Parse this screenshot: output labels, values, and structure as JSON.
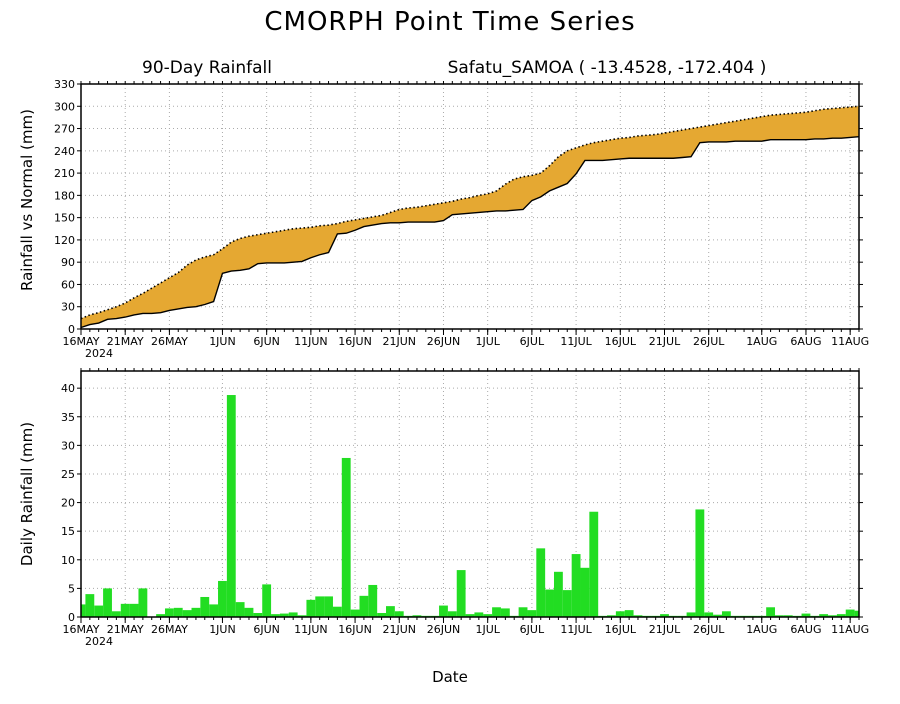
{
  "title": "CMORPH Point Time Series",
  "subtitle_left": "90-Day Rainfall",
  "subtitle_right": "Safatu_SAMOA ( -13.4528, -172.404 )",
  "xlabel": "Date",
  "year_label": "2024",
  "colors": {
    "accum_fill": "#E5A832",
    "daily_bars": "#22DD22",
    "grid": "#AAAAAA",
    "axis": "#000000"
  },
  "x_ticks": [
    "16MAY",
    "21MAY",
    "26MAY",
    "1JUN",
    "6JUN",
    "11JUN",
    "16JUN",
    "21JUN",
    "26JUN",
    "1JUL",
    "6JUL",
    "11JUL",
    "16JUL",
    "21JUL",
    "26JUL",
    "1AUG",
    "6AUG",
    "11AUG"
  ],
  "x_tick_days": [
    0,
    5,
    10,
    16,
    21,
    26,
    31,
    36,
    41,
    46,
    51,
    56,
    61,
    66,
    71,
    77,
    82,
    87
  ],
  "chart_data": [
    {
      "type": "area",
      "ylabel": "Rainfall vs Normal (mm)",
      "ylim": [
        0,
        330
      ],
      "yticks": [
        "0",
        "30",
        "60",
        "90",
        "120",
        "150",
        "180",
        "210",
        "240",
        "270",
        "300",
        "330"
      ],
      "ytick_values": [
        0,
        30,
        60,
        90,
        120,
        150,
        180,
        210,
        240,
        270,
        300,
        330
      ],
      "x_days": [
        0,
        1,
        2,
        3,
        4,
        5,
        6,
        7,
        8,
        9,
        10,
        11,
        12,
        13,
        14,
        15,
        16,
        17,
        18,
        19,
        20,
        21,
        22,
        23,
        24,
        25,
        26,
        27,
        28,
        29,
        30,
        31,
        32,
        33,
        34,
        35,
        36,
        37,
        38,
        39,
        40,
        41,
        42,
        43,
        44,
        45,
        46,
        47,
        48,
        49,
        50,
        51,
        52,
        53,
        54,
        55,
        56,
        57,
        58,
        59,
        60,
        61,
        62,
        63,
        64,
        65,
        66,
        67,
        68,
        69,
        70,
        71,
        72,
        73,
        74,
        75,
        76,
        77,
        78,
        79,
        80,
        81,
        82,
        83,
        84,
        85,
        86,
        87,
        88
      ],
      "normal": [
        14,
        19,
        22,
        26,
        30,
        35,
        42,
        48,
        55,
        62,
        69,
        76,
        86,
        93,
        97,
        100,
        108,
        117,
        122,
        125,
        127,
        129,
        131,
        133,
        135,
        136,
        137,
        139,
        140,
        142,
        145,
        147,
        149,
        151,
        153,
        157,
        161,
        163,
        164,
        166,
        168,
        170,
        172,
        175,
        177,
        180,
        182,
        186,
        195,
        202,
        205,
        207,
        210,
        220,
        232,
        240,
        244,
        248,
        251,
        253,
        255,
        257,
        258,
        260,
        261,
        262,
        264,
        266,
        268,
        270,
        272,
        274,
        276,
        278,
        280,
        282,
        284,
        286,
        288,
        289,
        290,
        291,
        292,
        294,
        296,
        297,
        298,
        299,
        300
      ],
      "cumulative": [
        2,
        6,
        8,
        13,
        14,
        16,
        19,
        21,
        21,
        22,
        25,
        27,
        29,
        30,
        33,
        37,
        75,
        78,
        79,
        81,
        88,
        89,
        89,
        89,
        90,
        91,
        96,
        100,
        103,
        128,
        129,
        133,
        138,
        140,
        142,
        143,
        143,
        144,
        144,
        144,
        144,
        146,
        154,
        155,
        156,
        157,
        158,
        159,
        159,
        160,
        161,
        173,
        178,
        186,
        191,
        196,
        209,
        227,
        227,
        227,
        228,
        229,
        230,
        230,
        230,
        230,
        230,
        230,
        231,
        232,
        251,
        252,
        252,
        252,
        253,
        253,
        253,
        253,
        255,
        255,
        255,
        255,
        255,
        256,
        256,
        257,
        257,
        258,
        259
      ]
    },
    {
      "type": "bar",
      "ylabel": "Daily Rainfall (mm)",
      "ylim": [
        0,
        43
      ],
      "yticks": [
        "0",
        "5",
        "10",
        "15",
        "20",
        "25",
        "30",
        "35",
        "40"
      ],
      "ytick_values": [
        0,
        5,
        10,
        15,
        20,
        25,
        30,
        35,
        40
      ],
      "x_days": [
        0,
        1,
        2,
        3,
        4,
        5,
        6,
        7,
        8,
        9,
        10,
        11,
        12,
        13,
        14,
        15,
        16,
        17,
        18,
        19,
        20,
        21,
        22,
        23,
        24,
        25,
        26,
        27,
        28,
        29,
        30,
        31,
        32,
        33,
        34,
        35,
        36,
        37,
        38,
        39,
        40,
        41,
        42,
        43,
        44,
        45,
        46,
        47,
        48,
        49,
        50,
        51,
        52,
        53,
        54,
        55,
        56,
        57,
        58,
        59,
        60,
        61,
        62,
        63,
        64,
        65,
        66,
        67,
        68,
        69,
        70,
        71,
        72,
        73,
        74,
        75,
        76,
        77,
        78,
        79,
        80,
        81,
        82,
        83,
        84,
        85,
        86,
        87,
        88
      ],
      "values": [
        2.2,
        4.0,
        2.0,
        5.0,
        1.0,
        2.3,
        2.3,
        5.0,
        0.0,
        0.5,
        1.5,
        1.6,
        1.2,
        1.6,
        3.5,
        2.2,
        6.3,
        38.8,
        2.6,
        1.6,
        0.7,
        5.7,
        0.5,
        0.6,
        0.8,
        0.3,
        3.0,
        3.6,
        3.6,
        1.8,
        27.8,
        1.3,
        3.7,
        5.6,
        0.7,
        1.9,
        1.0,
        0.2,
        0.3,
        0.2,
        0.2,
        2.0,
        1.0,
        8.2,
        0.5,
        0.8,
        0.5,
        1.7,
        1.5,
        0.2,
        1.7,
        1.2,
        12.0,
        4.8,
        7.9,
        4.7,
        11.0,
        8.6,
        18.4,
        0.2,
        0.3,
        1.0,
        1.2,
        0.3,
        0.2,
        0.2,
        0.5,
        0.2,
        0.2,
        0.8,
        18.8,
        0.8,
        0.4,
        1.0,
        0.2,
        0.2,
        0.2,
        0.2,
        1.7,
        0.3,
        0.3,
        0.2,
        0.6,
        0.2,
        0.5,
        0.3,
        0.5,
        1.3,
        1.1
      ]
    }
  ]
}
